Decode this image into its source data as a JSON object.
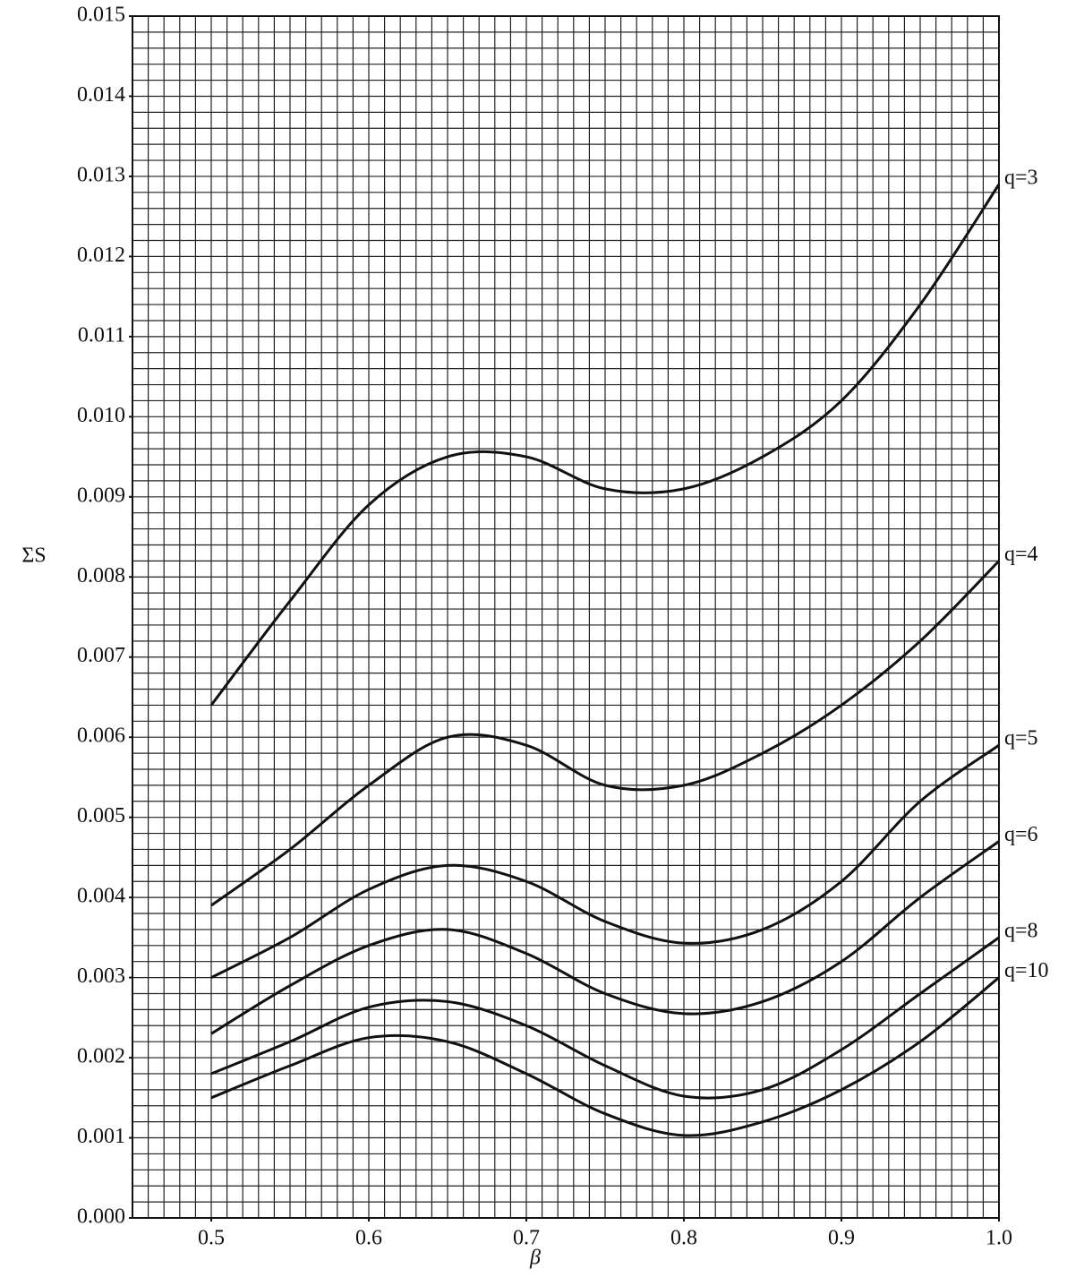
{
  "chart_data": {
    "type": "line",
    "x_label": "β",
    "y_label": "ΣS",
    "x": [
      0.5,
      0.55,
      0.6,
      0.65,
      0.7,
      0.75,
      0.8,
      0.85,
      0.9,
      0.95,
      1.0
    ],
    "series": [
      {
        "name": "q=3",
        "color": "#111111",
        "values": [
          0.0064,
          0.0077,
          0.0089,
          0.0095,
          0.0095,
          0.0091,
          0.0091,
          0.0095,
          0.0102,
          0.0114,
          0.0129
        ]
      },
      {
        "name": "q=4",
        "color": "#111111",
        "values": [
          0.0039,
          0.0046,
          0.0054,
          0.006,
          0.0059,
          0.0054,
          0.0054,
          0.0058,
          0.0064,
          0.0072,
          0.0082
        ]
      },
      {
        "name": "q=5",
        "color": "#111111",
        "values": [
          0.003,
          0.0035,
          0.0041,
          0.0044,
          0.0042,
          0.0037,
          0.00343,
          0.0036,
          0.0042,
          0.0052,
          0.0059
        ]
      },
      {
        "name": "q=6",
        "color": "#111111",
        "values": [
          0.0023,
          0.0029,
          0.0034,
          0.0036,
          0.0033,
          0.0028,
          0.00255,
          0.0027,
          0.0032,
          0.004,
          0.0047
        ]
      },
      {
        "name": "q=8",
        "color": "#111111",
        "values": [
          0.0018,
          0.0022,
          0.00263,
          0.0027,
          0.0024,
          0.0019,
          0.00152,
          0.0016,
          0.0021,
          0.0028,
          0.0035
        ]
      },
      {
        "name": "q=10",
        "color": "#111111",
        "values": [
          0.0015,
          0.0019,
          0.00225,
          0.0022,
          0.0018,
          0.0013,
          0.00103,
          0.0012,
          0.0016,
          0.0022,
          0.003
        ]
      }
    ],
    "xlim": [
      0.45,
      1.0
    ],
    "ylim": [
      0,
      0.015
    ],
    "xticks": [
      0.5,
      0.6,
      0.7,
      0.8,
      0.9,
      {
        "value": 1.0,
        "label": "1.0"
      }
    ],
    "yticks": [
      {
        "value": 0,
        "label": "0.000"
      },
      0.001,
      0.002,
      0.003,
      0.004,
      0.005,
      0.006,
      0.007,
      0.008,
      0.009,
      {
        "value": 0.01,
        "label": "0.010"
      },
      0.011,
      0.012,
      0.013,
      0.014,
      0.015
    ],
    "grid": true,
    "minor_grid": {
      "x": 0.01,
      "y": 0.0002
    }
  }
}
